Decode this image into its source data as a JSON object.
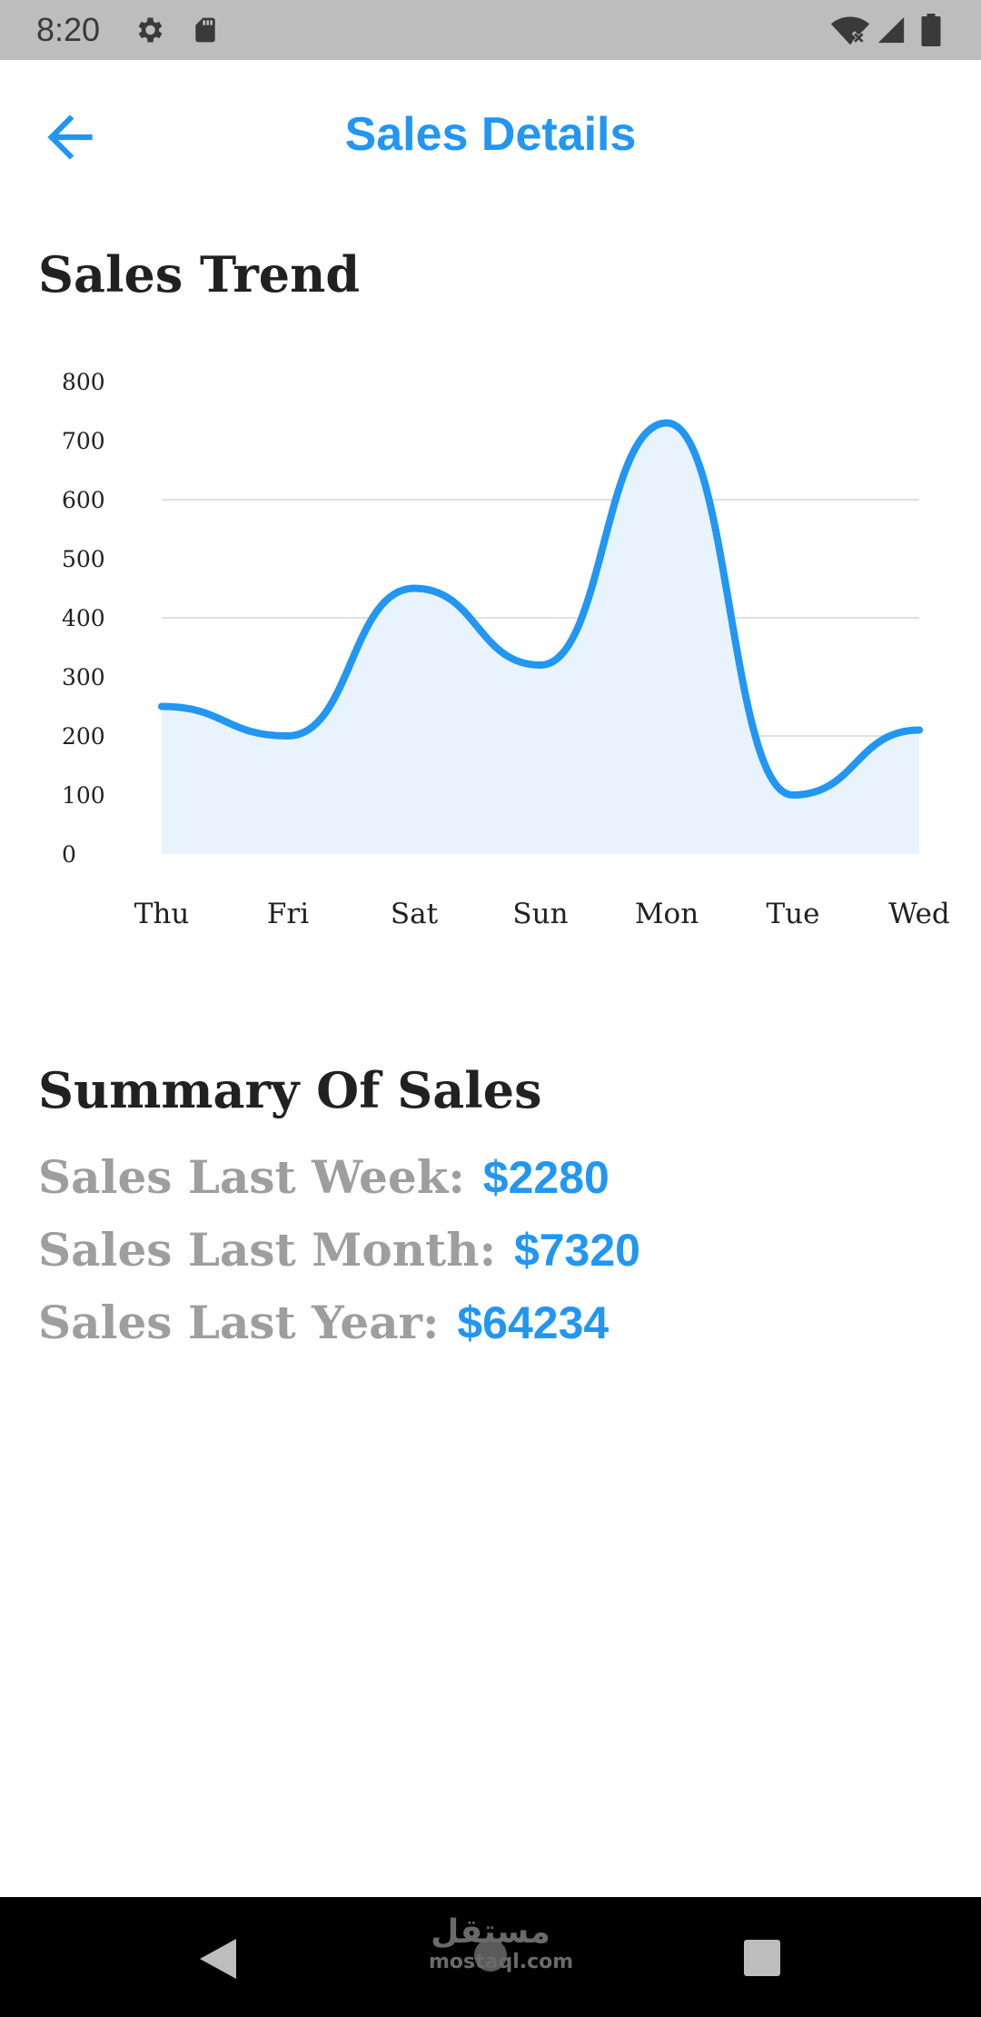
{
  "status_bar": {
    "time": "8:20",
    "left_icons": [
      "gear-icon",
      "sd-card-icon"
    ],
    "right_icons": [
      "wifi-off-icon",
      "cell-signal-icon",
      "battery-icon"
    ]
  },
  "app_bar": {
    "back_icon": "arrow-left-icon",
    "title": "Sales Details"
  },
  "trend_section": {
    "title": "Sales Trend"
  },
  "chart_data": {
    "type": "area",
    "title": "",
    "xlabel": "",
    "ylabel": "",
    "categories": [
      "Thu",
      "Fri",
      "Sat",
      "Sun",
      "Mon",
      "Tue",
      "Wed"
    ],
    "series": [
      {
        "values": [
          250,
          200,
          450,
          320,
          730,
          100,
          210
        ]
      }
    ],
    "ylim": [
      0,
      800
    ],
    "yticks": [
      "0",
      "100",
      "200",
      "300",
      "400",
      "500",
      "600",
      "700",
      "800"
    ],
    "gridlines_at": [
      200,
      400,
      600
    ],
    "smooth": true,
    "line_color": "#2196f3",
    "fill_color": "#e8f3fd"
  },
  "summary": {
    "title": "Summary Of Sales",
    "items": [
      {
        "label": "Sales Last Week:",
        "value": "$2280"
      },
      {
        "label": "Sales Last Month:",
        "value": "$7320"
      },
      {
        "label": "Sales Last Year:",
        "value": "$64234"
      }
    ]
  },
  "nav_bar": {
    "icons": [
      "back-triangle-icon",
      "home-circle-icon",
      "recents-square-icon"
    ],
    "watermark_ar": "مستقل",
    "watermark_en": "mostaql.com"
  },
  "colors": {
    "accent": "#2196f3",
    "heading": "#212121",
    "muted_label": "#9e9e9e",
    "status_bar": "#bdbdbd",
    "nav_bar": "#000000"
  }
}
